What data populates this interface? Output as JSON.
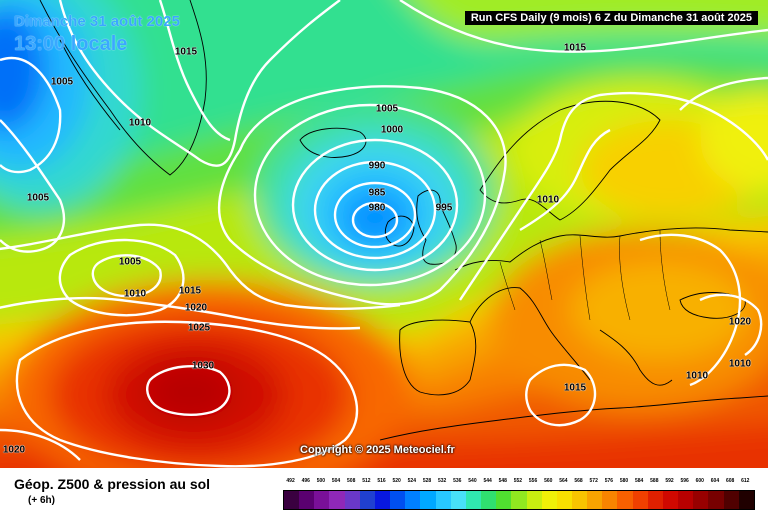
{
  "title": {
    "date": "Dimanche 31 août 2025",
    "time": "13:00 locale"
  },
  "run_label": "Run CFS Daily (9 mois) 6 Z du Dimanche 31 août 2025",
  "copyright": "Copyright © 2025 Meteociel.fr",
  "footer": {
    "title": "Géop. Z500 & pression au sol",
    "subtitle": "(+ 6h)"
  },
  "isobar_labels": {
    "iso_1015_a": "1015",
    "iso_1015_b": "1015",
    "iso_1005_a": "1005",
    "iso_1010_a": "1010",
    "iso_1005_b": "1005",
    "iso_1005_c": "1005",
    "iso_1000": "1000",
    "iso_990": "990",
    "iso_985": "985",
    "iso_980": "980",
    "iso_995": "995",
    "iso_1010_b": "1010",
    "iso_1005_d": "1005",
    "iso_1010_c": "1010",
    "iso_1015_c": "1015",
    "iso_1020_a": "1020",
    "iso_1025": "1025",
    "iso_1030": "1030",
    "iso_1015_d": "1015",
    "iso_1010_d": "1010",
    "iso_1010_e": "1010",
    "iso_1020_b": "1020",
    "iso_1020_c": "1020"
  },
  "legend": {
    "labels": [
      "492",
      "496",
      "500",
      "504",
      "508",
      "512",
      "516",
      "520",
      "524",
      "528",
      "532",
      "536",
      "540",
      "544",
      "548",
      "552",
      "556",
      "560",
      "564",
      "568",
      "572",
      "576",
      "580",
      "584",
      "588",
      "592",
      "596",
      "600",
      "604",
      "608",
      "612"
    ],
    "colors": [
      "#3a0040",
      "#5a0070",
      "#7a1098",
      "#8f28b8",
      "#6a38c8",
      "#2040d0",
      "#0818e0",
      "#0050f0",
      "#0080ff",
      "#00a8ff",
      "#28c8ff",
      "#48e0f8",
      "#30e8b0",
      "#30e070",
      "#50e030",
      "#90e820",
      "#c8ee10",
      "#f0f008",
      "#f8e000",
      "#f8c400",
      "#f8a400",
      "#f88400",
      "#f86000",
      "#f04000",
      "#e02000",
      "#d00800",
      "#b80000",
      "#980000",
      "#780000",
      "#500000",
      "#200000"
    ]
  },
  "colors": {
    "isobar": "#ffffff",
    "coastline": "#000000",
    "title_text": "#3aa8ff"
  }
}
